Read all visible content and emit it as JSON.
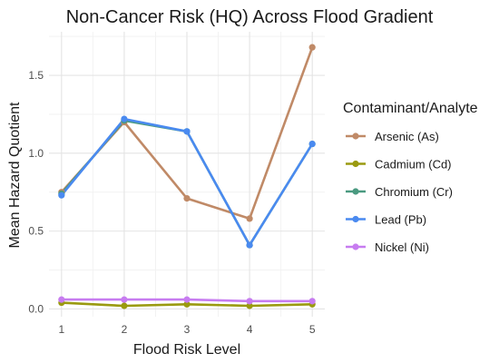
{
  "chart_data": {
    "type": "line",
    "title": "Non-Cancer Risk (HQ) Across Flood Gradient",
    "xlabel": "Flood Risk Level",
    "ylabel": "Mean Hazard Quotient",
    "x": [
      1,
      2,
      3,
      4,
      5
    ],
    "x_tick_labels": [
      "1",
      "2",
      "3",
      "4",
      "5"
    ],
    "y_ticks": [
      0.0,
      0.5,
      1.0,
      1.5
    ],
    "y_tick_labels": [
      "0.0",
      "0.5",
      "1.0",
      "1.5"
    ],
    "xlim": [
      0.8,
      5.2
    ],
    "ylim": [
      -0.05,
      1.78
    ],
    "grid": true,
    "legend_title": "Contaminant/Analyte",
    "legend_position": "right",
    "series": [
      {
        "name": "Arsenic (As)",
        "color": "#c08a67",
        "values": [
          0.75,
          1.2,
          0.71,
          0.58,
          1.68
        ]
      },
      {
        "name": "Cadmium (Cd)",
        "color": "#9a9a10",
        "values": [
          0.04,
          0.02,
          0.03,
          0.02,
          0.03
        ]
      },
      {
        "name": "Chromium (Cr)",
        "color": "#4a9a80",
        "values": [
          0.74,
          1.21,
          1.14,
          0.41,
          1.06
        ]
      },
      {
        "name": "Lead (Pb)",
        "color": "#4a8af0",
        "values": [
          0.73,
          1.22,
          1.14,
          0.41,
          1.06
        ]
      },
      {
        "name": "Nickel (Ni)",
        "color": "#c77cf0",
        "values": [
          0.06,
          0.06,
          0.06,
          0.05,
          0.05
        ]
      }
    ]
  }
}
